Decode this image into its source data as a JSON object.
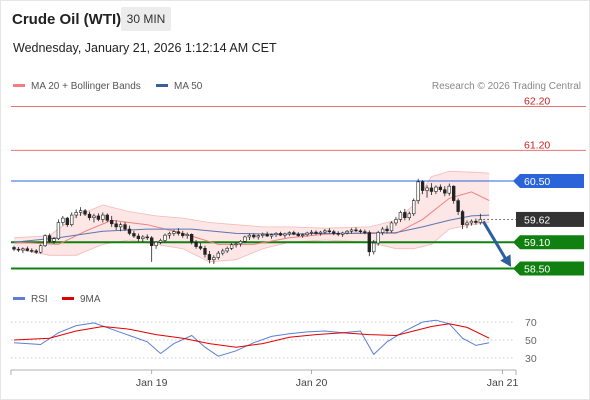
{
  "header": {
    "title": "Crude Oil (WTI)",
    "timeframe": "30 MIN",
    "datetime": "Wednesday, January 21, 2026 1:12:14 AM CET"
  },
  "legend": {
    "main": [
      {
        "label": "MA 20 + Bollinger Bands",
        "color": "#f08080"
      },
      {
        "label": "MA 50",
        "color": "#3a5f9a"
      }
    ],
    "rsi": [
      {
        "label": "RSI",
        "color": "#5b7fd6"
      },
      {
        "label": "9MA",
        "color": "#e00000"
      }
    ],
    "copyright": "Research © 2026 Trading Central"
  },
  "chart_data": {
    "type": "candlestick",
    "price_range": [
      58.35,
      62.35
    ],
    "levels": [
      {
        "value": 62.2,
        "label": "62.20",
        "kind": "resistance",
        "color": "#e06060"
      },
      {
        "value": 61.2,
        "label": "61.20",
        "kind": "resistance",
        "color": "#e06060"
      },
      {
        "value": 60.5,
        "label": "60.50",
        "kind": "pivot",
        "color": "#2a64d8"
      },
      {
        "value": 59.62,
        "label": "59.62",
        "kind": "last",
        "color": "#333333"
      },
      {
        "value": 59.1,
        "label": "59.10",
        "kind": "support",
        "color": "#108010"
      },
      {
        "value": 58.5,
        "label": "58.50",
        "kind": "support",
        "color": "#108010"
      }
    ],
    "x_ticks": [
      {
        "label": "Jan 19",
        "index": 31
      },
      {
        "label": "Jan 20",
        "index": 67
      },
      {
        "label": "Jan 21",
        "index": 110
      }
    ],
    "rsi_ticks": [
      70,
      50,
      30
    ],
    "rsi_range": [
      20,
      80
    ],
    "projection": {
      "from": 59.62,
      "to": 58.5,
      "direction": "down"
    },
    "candles": [
      [
        58.98,
        59.02,
        58.9,
        58.94
      ],
      [
        58.94,
        58.99,
        58.88,
        58.92
      ],
      [
        58.92,
        58.98,
        58.85,
        58.95
      ],
      [
        58.95,
        59.0,
        58.89,
        58.91
      ],
      [
        58.91,
        58.96,
        58.86,
        58.9
      ],
      [
        58.9,
        58.94,
        58.83,
        58.87
      ],
      [
        58.87,
        59.05,
        58.84,
        59.02
      ],
      [
        59.02,
        59.28,
        58.99,
        59.25
      ],
      [
        59.25,
        59.3,
        59.09,
        59.12
      ],
      [
        59.12,
        59.22,
        59.06,
        59.18
      ],
      [
        59.18,
        59.62,
        59.15,
        59.55
      ],
      [
        59.55,
        59.7,
        59.48,
        59.65
      ],
      [
        59.65,
        59.68,
        59.45,
        59.5
      ],
      [
        59.5,
        59.78,
        59.46,
        59.72
      ],
      [
        59.72,
        59.85,
        59.65,
        59.78
      ],
      [
        59.78,
        59.9,
        59.7,
        59.82
      ],
      [
        59.82,
        59.86,
        59.7,
        59.74
      ],
      [
        59.74,
        59.8,
        59.6,
        59.66
      ],
      [
        59.66,
        59.75,
        59.55,
        59.7
      ],
      [
        59.7,
        59.76,
        59.58,
        59.62
      ],
      [
        59.62,
        59.78,
        59.55,
        59.72
      ],
      [
        59.72,
        59.76,
        59.56,
        59.6
      ],
      [
        59.6,
        59.7,
        59.45,
        59.52
      ],
      [
        59.52,
        59.6,
        59.38,
        59.45
      ],
      [
        59.45,
        59.55,
        59.35,
        59.5
      ],
      [
        59.5,
        59.56,
        59.36,
        59.4
      ],
      [
        59.4,
        59.48,
        59.26,
        59.3
      ],
      [
        59.3,
        59.36,
        59.2,
        59.24
      ],
      [
        59.24,
        59.3,
        59.12,
        59.18
      ],
      [
        59.18,
        59.26,
        59.1,
        59.22
      ],
      [
        59.22,
        59.28,
        59.15,
        59.2
      ],
      [
        59.2,
        59.24,
        58.65,
        59.02
      ],
      [
        59.02,
        59.12,
        58.95,
        59.1
      ],
      [
        59.1,
        59.18,
        59.05,
        59.14
      ],
      [
        59.14,
        59.3,
        59.1,
        59.26
      ],
      [
        59.26,
        59.34,
        59.18,
        59.3
      ],
      [
        59.3,
        59.38,
        59.24,
        59.34
      ],
      [
        59.34,
        59.42,
        59.25,
        59.3
      ],
      [
        59.3,
        59.36,
        59.2,
        59.25
      ],
      [
        59.25,
        59.32,
        59.18,
        59.28
      ],
      [
        59.28,
        59.3,
        59.05,
        59.1
      ],
      [
        59.1,
        59.15,
        58.95,
        59.0
      ],
      [
        59.0,
        59.08,
        58.92,
        58.96
      ],
      [
        58.96,
        59.02,
        58.75,
        58.82
      ],
      [
        58.82,
        58.9,
        58.62,
        58.7
      ],
      [
        58.7,
        58.8,
        58.6,
        58.75
      ],
      [
        58.75,
        58.9,
        58.7,
        58.85
      ],
      [
        58.85,
        58.95,
        58.8,
        58.9
      ],
      [
        58.9,
        59.0,
        58.85,
        58.96
      ],
      [
        58.96,
        59.08,
        58.92,
        59.04
      ],
      [
        59.04,
        59.1,
        58.98,
        59.06
      ],
      [
        59.06,
        59.15,
        59.0,
        59.12
      ],
      [
        59.12,
        59.25,
        59.08,
        59.22
      ],
      [
        59.22,
        59.3,
        59.15,
        59.26
      ],
      [
        59.26,
        59.3,
        59.18,
        59.22
      ],
      [
        59.22,
        59.28,
        59.16,
        59.25
      ],
      [
        59.25,
        59.32,
        59.2,
        59.28
      ],
      [
        59.28,
        59.34,
        59.22,
        59.24
      ],
      [
        59.24,
        59.3,
        59.18,
        59.27
      ],
      [
        59.27,
        59.33,
        59.22,
        59.3
      ],
      [
        59.3,
        59.34,
        59.24,
        59.26
      ],
      [
        59.26,
        59.32,
        59.2,
        59.29
      ],
      [
        59.29,
        59.35,
        59.24,
        59.32
      ],
      [
        59.32,
        59.36,
        59.26,
        59.28
      ],
      [
        59.28,
        59.33,
        59.22,
        59.25
      ],
      [
        59.25,
        59.3,
        59.2,
        59.27
      ],
      [
        59.27,
        59.34,
        59.23,
        59.31
      ],
      [
        59.31,
        59.38,
        59.26,
        59.33
      ],
      [
        59.33,
        59.37,
        59.27,
        59.3
      ],
      [
        59.3,
        59.36,
        59.25,
        59.33
      ],
      [
        59.33,
        59.4,
        59.29,
        59.36
      ],
      [
        59.36,
        59.42,
        59.3,
        59.34
      ],
      [
        59.34,
        59.38,
        59.26,
        59.3
      ],
      [
        59.3,
        59.35,
        59.24,
        59.28
      ],
      [
        59.28,
        59.34,
        59.22,
        59.31
      ],
      [
        59.31,
        59.38,
        59.28,
        59.35
      ],
      [
        59.35,
        59.42,
        59.3,
        59.38
      ],
      [
        59.38,
        59.44,
        59.33,
        59.36
      ],
      [
        59.36,
        59.4,
        59.3,
        59.34
      ],
      [
        59.34,
        59.39,
        59.28,
        59.32
      ],
      [
        59.32,
        59.37,
        58.78,
        58.88
      ],
      [
        58.88,
        59.15,
        58.82,
        59.08
      ],
      [
        59.08,
        59.36,
        59.02,
        59.32
      ],
      [
        59.32,
        59.45,
        59.26,
        59.4
      ],
      [
        59.4,
        59.48,
        59.3,
        59.36
      ],
      [
        59.36,
        59.58,
        59.32,
        59.54
      ],
      [
        59.54,
        59.68,
        59.48,
        59.62
      ],
      [
        59.62,
        59.82,
        59.56,
        59.78
      ],
      [
        59.78,
        59.86,
        59.6,
        59.66
      ],
      [
        59.66,
        59.8,
        59.6,
        59.75
      ],
      [
        59.75,
        60.1,
        59.7,
        60.05
      ],
      [
        60.05,
        60.55,
        59.98,
        60.48
      ],
      [
        60.48,
        60.52,
        60.2,
        60.28
      ],
      [
        60.28,
        60.4,
        60.12,
        60.34
      ],
      [
        60.34,
        60.45,
        60.18,
        60.26
      ],
      [
        60.26,
        60.4,
        60.2,
        60.36
      ],
      [
        60.36,
        60.42,
        60.25,
        60.3
      ],
      [
        60.3,
        60.38,
        60.15,
        60.22
      ],
      [
        60.22,
        60.44,
        60.16,
        60.38
      ],
      [
        60.38,
        60.4,
        59.98,
        60.05
      ],
      [
        60.05,
        60.1,
        59.72,
        59.8
      ],
      [
        59.8,
        59.84,
        59.4,
        59.5
      ],
      [
        59.5,
        59.6,
        59.42,
        59.54
      ],
      [
        59.54,
        59.62,
        59.48,
        59.58
      ],
      [
        59.58,
        59.64,
        59.5,
        59.55
      ],
      [
        59.55,
        59.75,
        59.5,
        59.62
      ]
    ],
    "ma20": [
      [
        0,
        59.1
      ],
      [
        10,
        59.05
      ],
      [
        16,
        59.35
      ],
      [
        22,
        59.6
      ],
      [
        30,
        59.5
      ],
      [
        38,
        59.3
      ],
      [
        46,
        59.05
      ],
      [
        54,
        59.05
      ],
      [
        62,
        59.2
      ],
      [
        70,
        59.28
      ],
      [
        80,
        59.32
      ],
      [
        86,
        59.3
      ],
      [
        92,
        59.62
      ],
      [
        98,
        60.1
      ],
      [
        103,
        60.25
      ],
      [
        107,
        60.05
      ]
    ],
    "ma50": [
      [
        0,
        59.1
      ],
      [
        10,
        59.2
      ],
      [
        20,
        59.35
      ],
      [
        30,
        59.4
      ],
      [
        40,
        59.4
      ],
      [
        50,
        59.3
      ],
      [
        60,
        59.28
      ],
      [
        70,
        59.3
      ],
      [
        80,
        59.3
      ],
      [
        86,
        59.32
      ],
      [
        92,
        59.45
      ],
      [
        98,
        59.6
      ],
      [
        103,
        59.7
      ],
      [
        107,
        59.72
      ]
    ],
    "bb_upper": [
      [
        0,
        59.2
      ],
      [
        8,
        59.25
      ],
      [
        14,
        59.7
      ],
      [
        20,
        59.95
      ],
      [
        26,
        59.8
      ],
      [
        32,
        59.7
      ],
      [
        38,
        59.65
      ],
      [
        44,
        59.55
      ],
      [
        50,
        59.5
      ],
      [
        56,
        59.45
      ],
      [
        62,
        59.45
      ],
      [
        70,
        59.42
      ],
      [
        80,
        59.45
      ],
      [
        86,
        59.6
      ],
      [
        90,
        59.95
      ],
      [
        94,
        60.6
      ],
      [
        98,
        60.72
      ],
      [
        103,
        60.7
      ],
      [
        107,
        60.68
      ]
    ],
    "bb_lower": [
      [
        0,
        58.95
      ],
      [
        8,
        58.8
      ],
      [
        14,
        58.8
      ],
      [
        20,
        59.05
      ],
      [
        26,
        59.15
      ],
      [
        32,
        59.05
      ],
      [
        38,
        58.95
      ],
      [
        44,
        58.65
      ],
      [
        50,
        58.7
      ],
      [
        56,
        58.95
      ],
      [
        62,
        59.1
      ],
      [
        70,
        59.15
      ],
      [
        80,
        59.1
      ],
      [
        86,
        58.95
      ],
      [
        90,
        58.95
      ],
      [
        94,
        59.05
      ],
      [
        98,
        59.4
      ],
      [
        103,
        59.5
      ],
      [
        107,
        59.55
      ]
    ],
    "rsi": [
      [
        0,
        47
      ],
      [
        6,
        45
      ],
      [
        10,
        58
      ],
      [
        14,
        66
      ],
      [
        18,
        69
      ],
      [
        22,
        62
      ],
      [
        26,
        55
      ],
      [
        30,
        48
      ],
      [
        33,
        35
      ],
      [
        36,
        46
      ],
      [
        40,
        55
      ],
      [
        43,
        42
      ],
      [
        46,
        32
      ],
      [
        50,
        38
      ],
      [
        54,
        47
      ],
      [
        58,
        54
      ],
      [
        62,
        57
      ],
      [
        66,
        59
      ],
      [
        70,
        60
      ],
      [
        74,
        58
      ],
      [
        78,
        60
      ],
      [
        81,
        34
      ],
      [
        84,
        48
      ],
      [
        88,
        60
      ],
      [
        92,
        70
      ],
      [
        95,
        72
      ],
      [
        98,
        68
      ],
      [
        101,
        52
      ],
      [
        104,
        44
      ],
      [
        107,
        47
      ]
    ],
    "rsi_ma": [
      [
        0,
        50
      ],
      [
        8,
        52
      ],
      [
        14,
        60
      ],
      [
        20,
        65
      ],
      [
        26,
        62
      ],
      [
        32,
        56
      ],
      [
        38,
        52
      ],
      [
        44,
        46
      ],
      [
        50,
        42
      ],
      [
        56,
        46
      ],
      [
        62,
        53
      ],
      [
        68,
        56
      ],
      [
        74,
        58
      ],
      [
        80,
        56
      ],
      [
        86,
        55
      ],
      [
        90,
        60
      ],
      [
        94,
        65
      ],
      [
        98,
        68
      ],
      [
        102,
        64
      ],
      [
        107,
        52
      ]
    ]
  }
}
